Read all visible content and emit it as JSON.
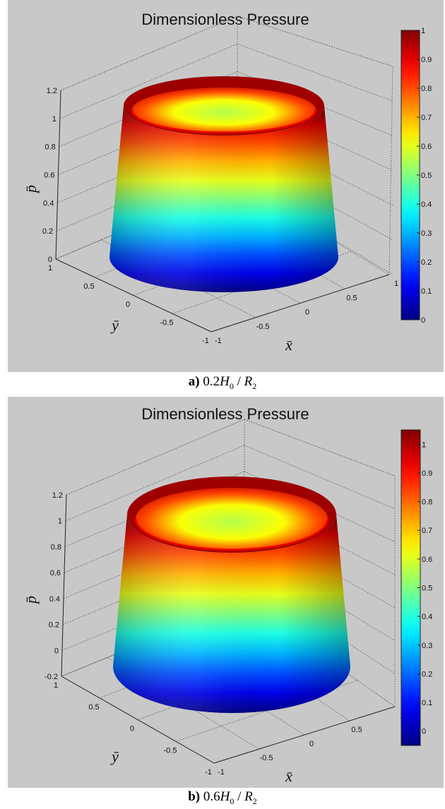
{
  "figure": {
    "panels": [
      {
        "caption": {
          "letter": "a)",
          "expr_num": "0.2",
          "var1": "H",
          "sub1": "0",
          "sep": " / ",
          "var2": "R",
          "sub2": "2"
        }
      },
      {
        "caption": {
          "letter": "b)",
          "expr_num": "0.6",
          "var1": "H",
          "sub1": "0",
          "sep": " / ",
          "var2": "R",
          "sub2": "2"
        }
      }
    ]
  },
  "chart_data": [
    {
      "type": "surface",
      "title": "Dimensionless Pressure",
      "xlabel": "x̄",
      "ylabel": "ȳ",
      "zlabel": "p̄",
      "x_ticks": [
        "-1",
        "-0.5",
        "0",
        "0.5",
        "1"
      ],
      "y_ticks": [
        "1",
        "0.5",
        "0",
        "-0.5",
        "-1"
      ],
      "z_ticks": [
        "0",
        "0.2",
        "0.4",
        "0.6",
        "0.8",
        "1",
        "1.2"
      ],
      "zlim": [
        0,
        1.2
      ],
      "colorbar": {
        "ticks": [
          "0",
          "0.1",
          "0.2",
          "0.3",
          "0.4",
          "0.5",
          "0.6",
          "0.7",
          "0.8",
          "0.9",
          "1"
        ],
        "range": [
          0,
          1
        ]
      },
      "grid": true,
      "colormap": "jet"
    },
    {
      "type": "surface",
      "title": "Dimensionless Pressure",
      "xlabel": "x̄",
      "ylabel": "ȳ",
      "zlabel": "p̄",
      "x_ticks": [
        "-1",
        "-0.5",
        "0",
        "0.5",
        "1"
      ],
      "y_ticks": [
        "1",
        "0.5",
        "0",
        "-0.5",
        "-1"
      ],
      "z_ticks": [
        "-0.2",
        "0",
        "0.2",
        "0.4",
        "0.6",
        "0.8",
        "1",
        "1.2"
      ],
      "zlim": [
        -0.2,
        1.2
      ],
      "colorbar": {
        "ticks": [
          "0",
          "0.1",
          "0.2",
          "0.3",
          "0.4",
          "0.5",
          "0.6",
          "0.7",
          "0.8",
          "0.9",
          "1"
        ],
        "range": [
          -0.05,
          1.05
        ]
      },
      "grid": true,
      "colormap": "jet"
    }
  ]
}
